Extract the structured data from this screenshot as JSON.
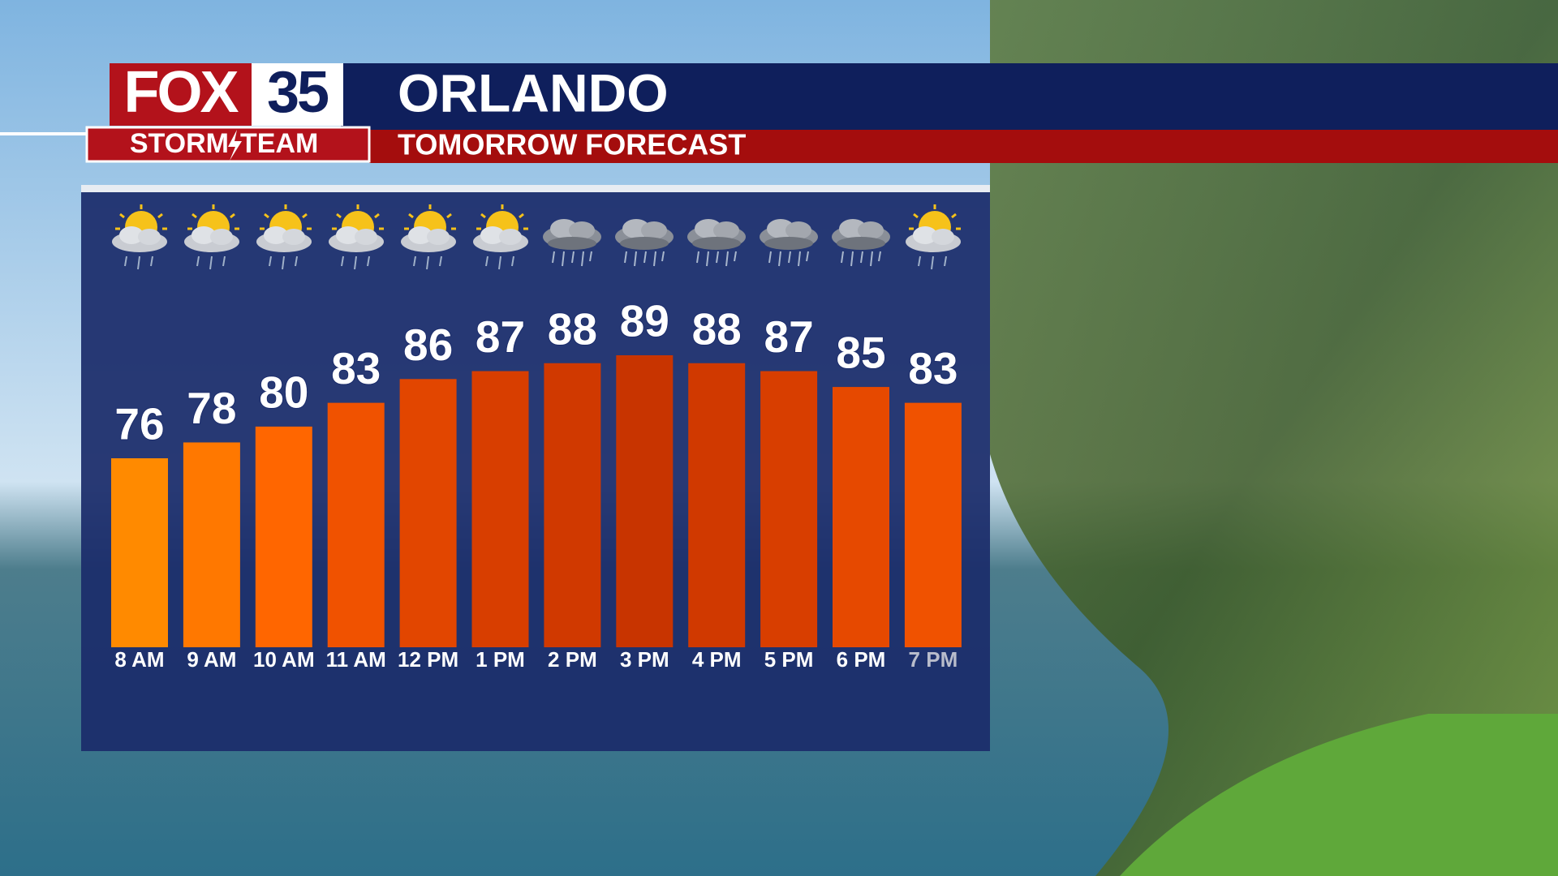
{
  "logo": {
    "brand": "FOX",
    "channel": "35",
    "team_left": "STORM",
    "team_right": "TEAM"
  },
  "chart_data": {
    "type": "bar",
    "title": "ORLANDO",
    "subtitle": "TOMORROW FORECAST",
    "categories": [
      "8 AM",
      "9 AM",
      "10 AM",
      "11 AM",
      "12 PM",
      "1 PM",
      "2 PM",
      "3 PM",
      "4 PM",
      "5 PM",
      "6 PM",
      "7 PM"
    ],
    "values": [
      76,
      78,
      80,
      83,
      86,
      87,
      88,
      89,
      88,
      87,
      85,
      83
    ],
    "colors": [
      "#ff8a00",
      "#ff7800",
      "#ff6600",
      "#f05200",
      "#e24600",
      "#d83e00",
      "#d03900",
      "#c83400",
      "#d03900",
      "#d83e00",
      "#e64900",
      "#f05200"
    ]
  }
}
